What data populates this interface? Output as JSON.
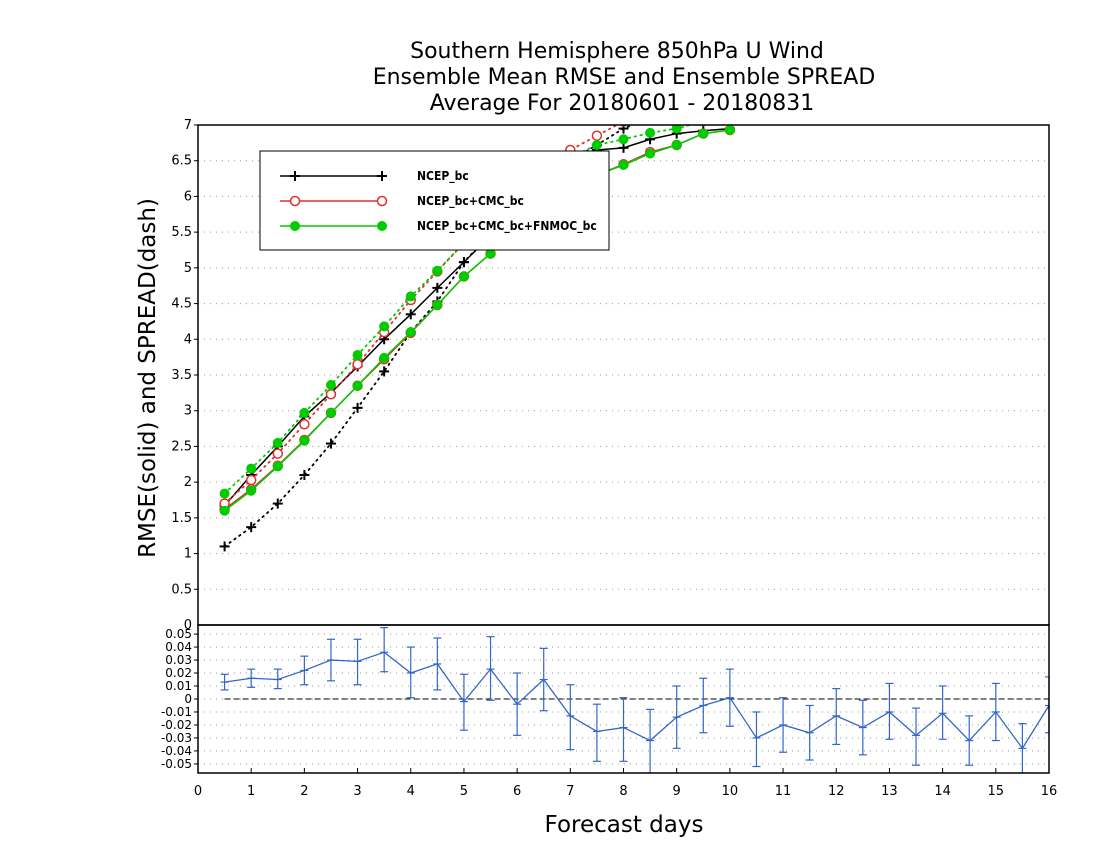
{
  "title_lines": [
    "Southern Hemisphere 850hPa U Wind",
    "Ensemble Mean RMSE and Ensemble SPREAD",
    "Average For 20180601 - 20180831"
  ],
  "chart_data": [
    {
      "type": "line",
      "ylabel": "RMSE(solid) and SPREAD(dash)",
      "xlim": [
        0,
        16
      ],
      "ylim": [
        0,
        7
      ],
      "x_ticks": [
        "0",
        "1",
        "2",
        "3",
        "4",
        "5",
        "6",
        "7",
        "8",
        "9",
        "10",
        "11",
        "12",
        "13",
        "14",
        "15",
        "16"
      ],
      "y_ticks": [
        "0.5",
        "1",
        "1.5",
        "2",
        "2.5",
        "3",
        "3.5",
        "4",
        "4.5",
        "5",
        "5.5",
        "6",
        "6.5",
        "7"
      ],
      "grid": true,
      "legend_position": "top-left",
      "x": [
        0.5,
        1,
        1.5,
        2,
        2.5,
        3,
        3.5,
        4,
        4.5,
        5,
        5.5,
        6,
        6.5,
        7,
        7.5,
        8,
        8.5,
        9,
        9.5,
        10
      ],
      "series": [
        {
          "name": "NCEP_bc",
          "color": "#000000",
          "marker": "plus",
          "rmse": [
            1.67,
            2.1,
            2.5,
            2.92,
            3.25,
            3.62,
            4.0,
            4.35,
            4.72,
            5.08,
            5.45,
            5.8,
            6.1,
            6.38,
            6.65,
            6.68,
            6.8,
            6.88,
            6.92,
            6.95
          ],
          "spread": [
            1.1,
            1.37,
            1.7,
            2.1,
            2.54,
            3.04,
            3.55,
            4.1,
            4.53,
            5.08,
            5.48,
            5.9,
            6.25,
            6.5,
            6.72,
            6.95,
            7.1,
            7.25,
            7.35,
            7.45
          ]
        },
        {
          "name": "NCEP_bc+CMC_bc",
          "color": "#e03030",
          "marker": "open-circle",
          "rmse": [
            1.62,
            1.9,
            2.23,
            2.59,
            2.97,
            3.35,
            3.72,
            4.09,
            4.48,
            4.88,
            5.2,
            5.6,
            5.92,
            6.15,
            6.3,
            6.45,
            6.62,
            6.72,
            6.88,
            6.93
          ],
          "spread": [
            1.7,
            2.03,
            2.4,
            2.81,
            3.23,
            3.65,
            4.1,
            4.55,
            4.95,
            5.35,
            5.75,
            6.1,
            6.42,
            6.65,
            6.85,
            7.05,
            7.2,
            7.35,
            7.45,
            7.55
          ]
        },
        {
          "name": "NCEP_bc+CMC_bc+FNMOC_bc",
          "color": "#00cc00",
          "marker": "filled-circle",
          "rmse": [
            1.6,
            1.88,
            2.22,
            2.58,
            2.97,
            3.35,
            3.74,
            4.1,
            4.48,
            4.88,
            5.2,
            5.6,
            5.92,
            6.15,
            6.3,
            6.44,
            6.6,
            6.72,
            6.88,
            6.93
          ],
          "spread": [
            1.84,
            2.19,
            2.55,
            2.97,
            3.36,
            3.78,
            4.18,
            4.6,
            4.96,
            5.35,
            5.72,
            6.05,
            6.35,
            6.55,
            6.72,
            6.8,
            6.89,
            6.95,
            7.05,
            7.15
          ]
        }
      ]
    },
    {
      "type": "line",
      "xlabel": "Forecast days",
      "xlim": [
        0,
        16
      ],
      "ylim": [
        -0.057,
        0.057
      ],
      "y_ticks": [
        "-0.05",
        "-0.04",
        "-0.03",
        "-0.02",
        "-0.01",
        "0",
        "0.01",
        "0.02",
        "0.03",
        "0.04",
        "0.05"
      ],
      "grid": true,
      "series": [
        {
          "name": "",
          "color": "#3366cc",
          "marker": "error-bar",
          "x": [
            0.5,
            1,
            1.5,
            2,
            2.5,
            3,
            3.5,
            4,
            4.5,
            5,
            5.5,
            6,
            6.5,
            7,
            7.5,
            8,
            8.5,
            9,
            9.5,
            10,
            10.5,
            11,
            11.5,
            12,
            12.5,
            13,
            13.5,
            14,
            14.5,
            15,
            15.5,
            16
          ],
          "values": [
            0.013,
            0.016,
            0.015,
            0.022,
            0.03,
            0.029,
            0.036,
            0.02,
            0.027,
            -0.002,
            0.023,
            -0.004,
            0.015,
            -0.013,
            -0.025,
            -0.022,
            -0.032,
            -0.014,
            -0.005,
            0.001,
            -0.03,
            -0.02,
            -0.026,
            -0.013,
            -0.022,
            -0.01,
            -0.028,
            -0.011,
            -0.032,
            -0.01,
            -0.038,
            -0.005
          ],
          "lower": [
            0.007,
            0.009,
            0.008,
            0.011,
            0.014,
            0.011,
            0.021,
            0.001,
            0.007,
            -0.024,
            -0.001,
            -0.028,
            -0.009,
            -0.039,
            -0.048,
            -0.048,
            -0.057,
            -0.038,
            -0.026,
            -0.021,
            -0.052,
            -0.041,
            -0.047,
            -0.035,
            -0.043,
            -0.031,
            -0.051,
            -0.031,
            -0.051,
            -0.032,
            -0.057,
            -0.026
          ],
          "upper": [
            0.019,
            0.023,
            0.023,
            0.033,
            0.046,
            0.046,
            0.055,
            0.04,
            0.047,
            0.019,
            0.048,
            0.02,
            0.039,
            0.011,
            -0.004,
            0.001,
            -0.008,
            0.01,
            0.016,
            0.023,
            -0.01,
            0.001,
            -0.005,
            0.008,
            -0.001,
            0.012,
            -0.007,
            0.01,
            -0.013,
            0.012,
            -0.019,
            0.017
          ]
        }
      ]
    }
  ]
}
